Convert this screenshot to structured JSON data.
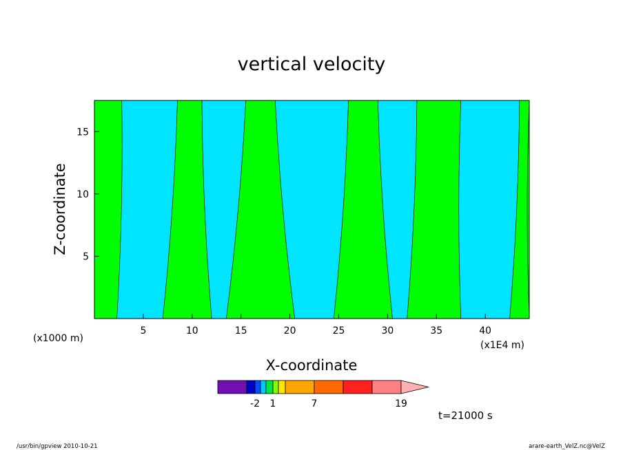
{
  "chart_data": {
    "type": "heatmap",
    "title": "vertical velocity",
    "xlabel": "X-coordinate",
    "ylabel": "Z-coordinate",
    "x_unit_left": "(x1000 m)",
    "x_unit_right": "(x1E4 m)",
    "xlim": [
      0,
      44.5
    ],
    "ylim": [
      0,
      17.5
    ],
    "x_ticks": [
      "5",
      "10",
      "15",
      "20",
      "25",
      "30",
      "35",
      "40"
    ],
    "y_ticks": [
      "5",
      "10",
      "15"
    ],
    "colors": {
      "positive": "#00ff00",
      "negative": "#00e5ff"
    },
    "region_boundaries": [
      {
        "from": "positive",
        "to": "negative",
        "x_at_top": 2.8,
        "x_at_bottom": 2.3
      },
      {
        "from": "negative",
        "to": "positive",
        "x_at_top": 8.5,
        "x_at_bottom": 7.0
      },
      {
        "from": "positive",
        "to": "negative",
        "x_at_top": 11.0,
        "x_at_bottom": 12.0
      },
      {
        "from": "negative",
        "to": "positive",
        "x_at_top": 15.5,
        "x_at_bottom": 13.5
      },
      {
        "from": "positive",
        "to": "negative",
        "x_at_top": 18.5,
        "x_at_bottom": 20.5
      },
      {
        "from": "negative",
        "to": "positive",
        "x_at_top": 26.0,
        "x_at_bottom": 24.5
      },
      {
        "from": "positive",
        "to": "negative",
        "x_at_top": 29.0,
        "x_at_bottom": 30.5
      },
      {
        "from": "negative",
        "to": "positive",
        "x_at_top": 33.0,
        "x_at_bottom": 32.0
      },
      {
        "from": "positive",
        "to": "negative",
        "x_at_top": 37.5,
        "x_at_bottom": 37.5
      },
      {
        "from": "negative",
        "to": "positive",
        "x_at_top": 43.5,
        "x_at_bottom": 42.5
      }
    ],
    "colorbar": {
      "colors": [
        "#7010b0",
        "#0000c8",
        "#0050ff",
        "#00c8ff",
        "#00e640",
        "#80ff00",
        "#ffe600",
        "#ffa500",
        "#ff6a00",
        "#ff2020",
        "#ff8080"
      ],
      "arrow_color": "#ffb0b0",
      "labels": [
        "-2",
        "1",
        "7",
        "19"
      ]
    },
    "time_label": "t=21000 s"
  },
  "footer": {
    "left": "/usr/bin/gpview  2010-10-21",
    "right": "arare-earth_VelZ.nc@VelZ"
  }
}
